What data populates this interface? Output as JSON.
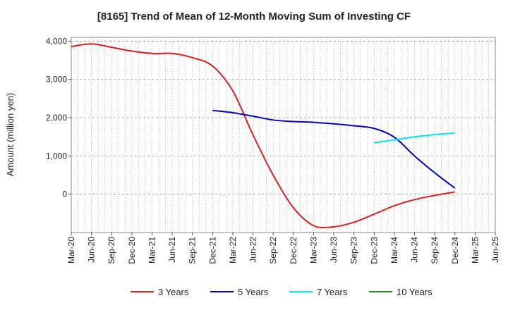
{
  "chart_data": {
    "type": "line",
    "title": "[8165]  Trend of Mean of 12-Month Moving Sum of Investing CF",
    "xlabel": "",
    "ylabel": "Amount (million yen)",
    "ylim": [
      -1000,
      4100
    ],
    "yticks": [
      0,
      1000,
      2000,
      3000,
      4000
    ],
    "ytick_labels": [
      "0",
      "1,000",
      "2,000",
      "3,000",
      "4,000"
    ],
    "x_start": "Mar-20",
    "x_end": "Jun-25",
    "xtick_labels": [
      "Mar-20",
      "Jun-20",
      "Sep-20",
      "Dec-20",
      "Mar-21",
      "Jun-21",
      "Sep-21",
      "Dec-21",
      "Mar-22",
      "Jun-22",
      "Sep-22",
      "Dec-22",
      "Mar-23",
      "Jun-23",
      "Sep-23",
      "Dec-23",
      "Mar-24",
      "Jun-24",
      "Sep-24",
      "Dec-24",
      "Mar-25",
      "Jun-25"
    ],
    "grid": true,
    "legend_position": "bottom",
    "series": [
      {
        "name": "3 Years",
        "color": "#e41a1c",
        "points": [
          [
            "Mar-20",
            3860
          ],
          [
            "Jun-20",
            3930
          ],
          [
            "Sep-20",
            3840
          ],
          [
            "Dec-20",
            3740
          ],
          [
            "Mar-21",
            3680
          ],
          [
            "Jun-21",
            3680
          ],
          [
            "Sep-21",
            3570
          ],
          [
            "Dec-21",
            3350
          ],
          [
            "Mar-22",
            2700
          ],
          [
            "Jun-22",
            1550
          ],
          [
            "Sep-22",
            500
          ],
          [
            "Dec-22",
            -350
          ],
          [
            "Mar-23",
            -820
          ],
          [
            "Jun-23",
            -850
          ],
          [
            "Sep-23",
            -730
          ],
          [
            "Dec-23",
            -520
          ],
          [
            "Mar-24",
            -300
          ],
          [
            "Jun-24",
            -140
          ],
          [
            "Sep-24",
            -30
          ],
          [
            "Dec-24",
            60
          ]
        ]
      },
      {
        "name": "5 Years",
        "color": "#0000cc",
        "points": [
          [
            "Dec-21",
            2190
          ],
          [
            "Mar-22",
            2130
          ],
          [
            "Jun-22",
            2040
          ],
          [
            "Sep-22",
            1940
          ],
          [
            "Dec-22",
            1900
          ],
          [
            "Mar-23",
            1880
          ],
          [
            "Jun-23",
            1840
          ],
          [
            "Sep-23",
            1790
          ],
          [
            "Dec-23",
            1720
          ],
          [
            "Mar-24",
            1490
          ],
          [
            "Jun-24",
            1000
          ],
          [
            "Sep-24",
            560
          ],
          [
            "Dec-24",
            160
          ]
        ]
      },
      {
        "name": "7 Years",
        "color": "#00e5ee",
        "points": [
          [
            "Dec-23",
            1350
          ],
          [
            "Mar-24",
            1420
          ],
          [
            "Jun-24",
            1500
          ],
          [
            "Sep-24",
            1560
          ],
          [
            "Dec-24",
            1600
          ]
        ]
      },
      {
        "name": "10 Years",
        "color": "#228b22",
        "points": []
      }
    ]
  }
}
